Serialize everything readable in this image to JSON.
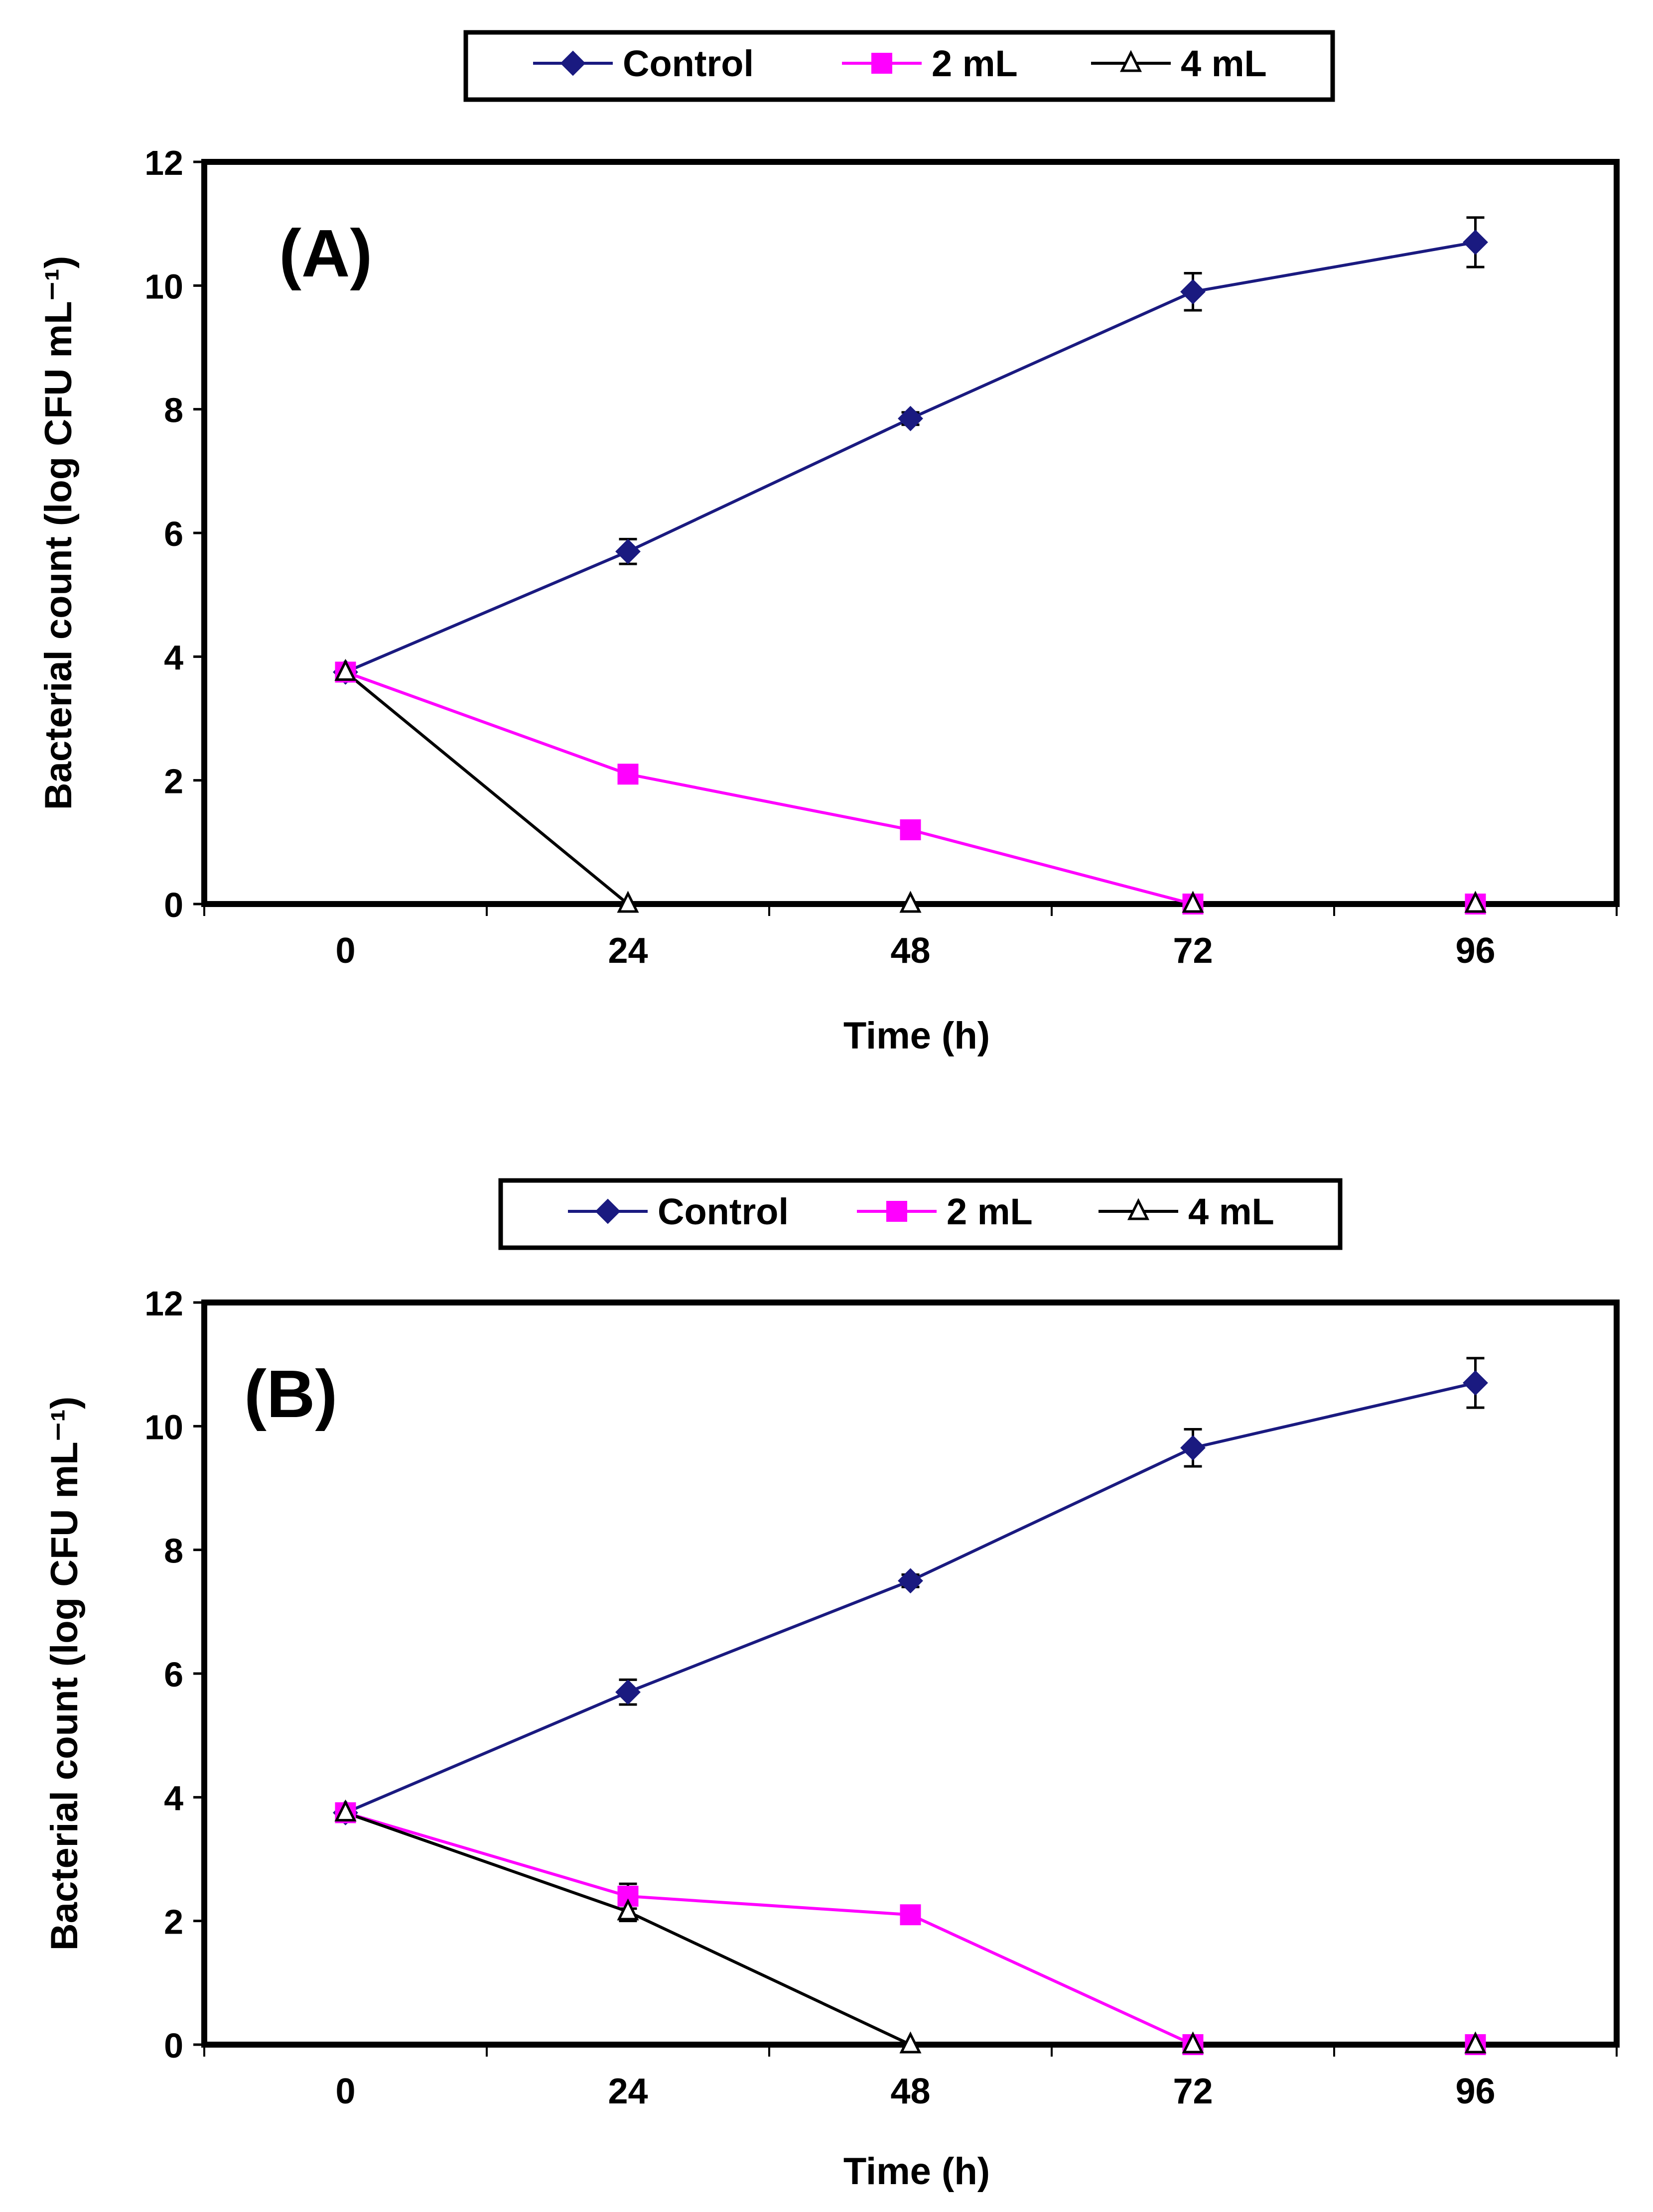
{
  "chart_data": [
    {
      "type": "line",
      "panel_label": "(A)",
      "xlabel": "Time (h)",
      "ylabel": "Bacterial count (log CFU mL⁻¹)",
      "x": [
        0,
        24,
        48,
        72,
        96
      ],
      "x_tick_labels": [
        "0",
        "24",
        "48",
        "72",
        "96"
      ],
      "y_tick_labels": [
        "0",
        "2",
        "4",
        "6",
        "8",
        "10",
        "12"
      ],
      "ylim": [
        0,
        12
      ],
      "legend_position": "top-center",
      "series": [
        {
          "name": "Control",
          "color": "#1a1a80",
          "marker": "diamond",
          "values": [
            3.75,
            5.7,
            7.85,
            9.9,
            10.7
          ],
          "errors": [
            0,
            0.2,
            0.1,
            0.3,
            0.4
          ]
        },
        {
          "name": "2 mL",
          "color": "#ff00ff",
          "marker": "square",
          "values": [
            3.75,
            2.1,
            1.2,
            0,
            0
          ],
          "errors": [
            0,
            0,
            0,
            0,
            0
          ]
        },
        {
          "name": "4 mL",
          "color": "#000000",
          "marker": "triangle-open",
          "values": [
            3.75,
            0,
            0,
            0,
            0
          ],
          "errors": [
            0,
            0,
            0,
            0,
            0
          ]
        }
      ]
    },
    {
      "type": "line",
      "panel_label": "(B)",
      "xlabel": "Time (h)",
      "ylabel": "Bacterial count (log CFU mL⁻¹)",
      "x": [
        0,
        24,
        48,
        72,
        96
      ],
      "x_tick_labels": [
        "0",
        "24",
        "48",
        "72",
        "96"
      ],
      "y_tick_labels": [
        "0",
        "2",
        "4",
        "6",
        "8",
        "10",
        "12"
      ],
      "ylim": [
        0,
        12
      ],
      "legend_position": "top-center",
      "series": [
        {
          "name": "Control",
          "color": "#1a1a80",
          "marker": "diamond",
          "values": [
            3.75,
            5.7,
            7.5,
            9.65,
            10.7
          ],
          "errors": [
            0,
            0.2,
            0.1,
            0.3,
            0.4
          ]
        },
        {
          "name": "2 mL",
          "color": "#ff00ff",
          "marker": "square",
          "values": [
            3.75,
            2.4,
            2.1,
            0,
            0
          ],
          "errors": [
            0,
            0.2,
            0,
            0,
            0
          ]
        },
        {
          "name": "4 mL",
          "color": "#000000",
          "marker": "triangle-open",
          "values": [
            3.75,
            2.15,
            0,
            0,
            0
          ],
          "errors": [
            0,
            0.15,
            0,
            0,
            0
          ]
        }
      ]
    }
  ]
}
